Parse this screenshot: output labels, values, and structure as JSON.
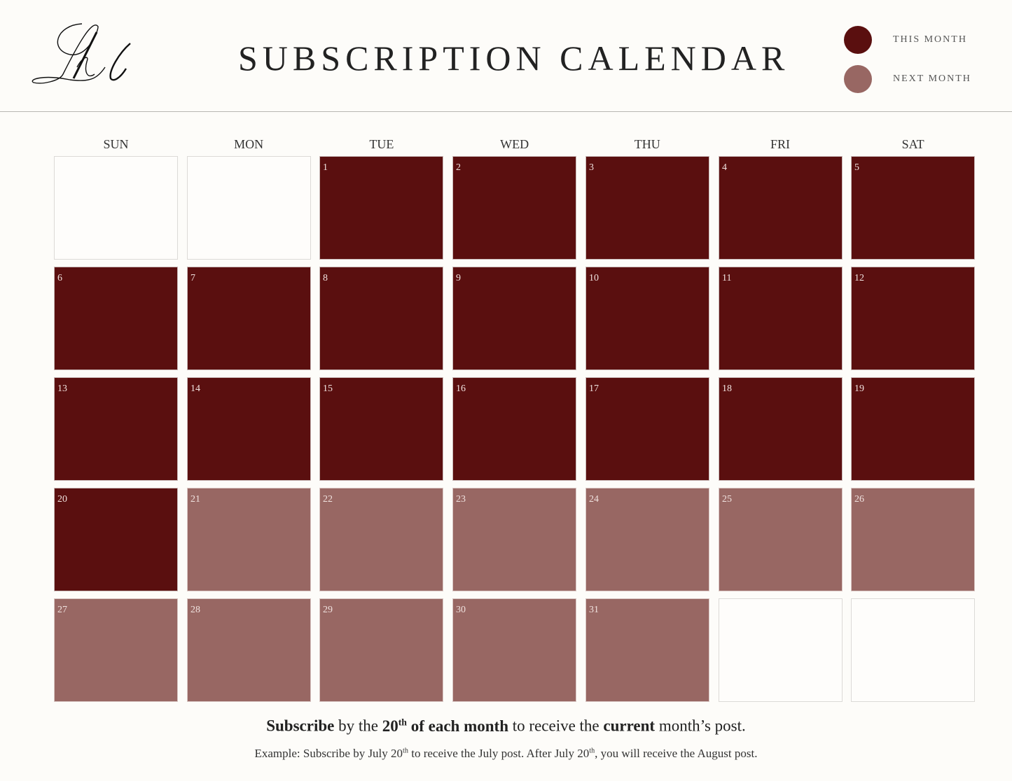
{
  "header": {
    "logo_text": "Lrl",
    "title": "SUBSCRIPTION CALENDAR"
  },
  "legend": {
    "items": [
      {
        "label": "THIS MONTH",
        "color": "#5a0f0f"
      },
      {
        "label": "NEXT MONTH",
        "color": "#986763"
      }
    ]
  },
  "calendar": {
    "weekdays": [
      "SUN",
      "MON",
      "TUE",
      "WED",
      "THU",
      "FRI",
      "SAT"
    ],
    "colors": {
      "this_month": "#5a0f0f",
      "next_month": "#986763",
      "empty": "#fefdfb"
    },
    "cutoff_day": 20,
    "days_in_month": 31,
    "first_weekday_index": 2
  },
  "footer": {
    "line1": {
      "p1": "Subscribe",
      "p2": " by the ",
      "p3": "20",
      "p3_sup": "th",
      "p4": " of each month",
      "p5": " to receive the ",
      "p6": "current",
      "p7": " month’s post."
    },
    "line2": {
      "p1": "Example: Subscribe by July 20",
      "p1_sup": "th",
      "p2": " to receive the July post. After July 20",
      "p2_sup": "th",
      "p3": ", you will receive the August post."
    }
  }
}
